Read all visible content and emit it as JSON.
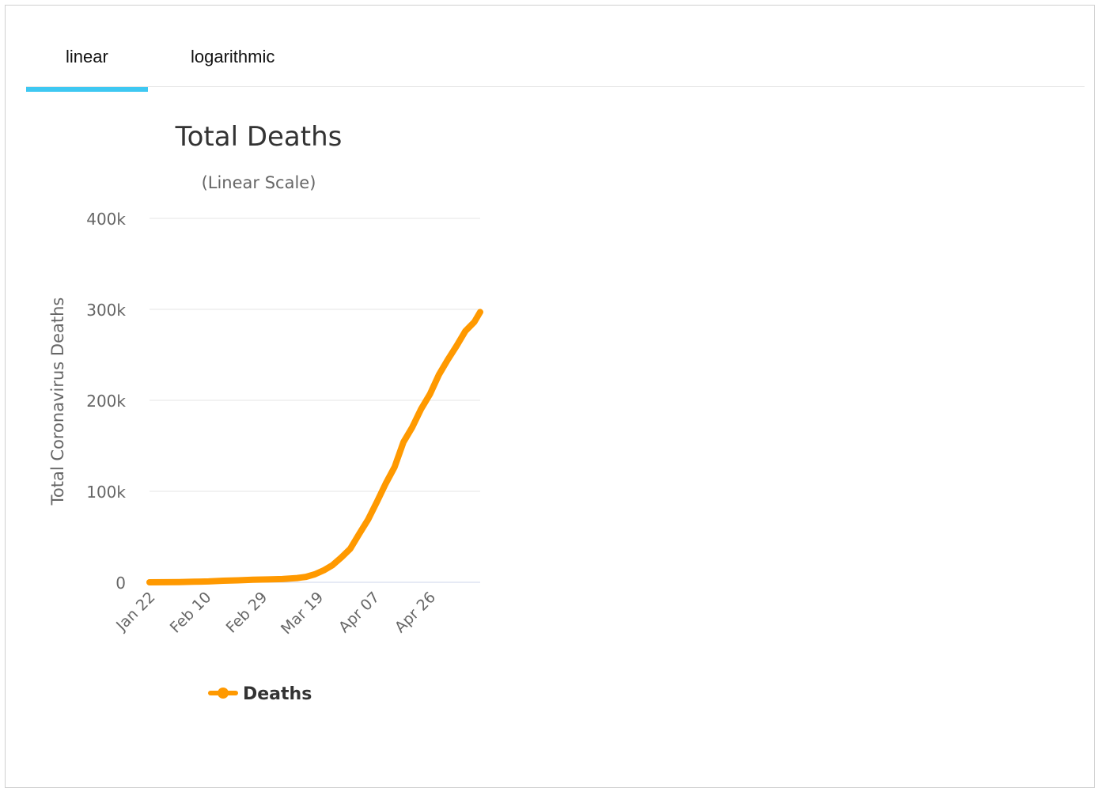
{
  "tabs": [
    {
      "label": "linear",
      "active": true
    },
    {
      "label": "logarithmic",
      "active": false
    }
  ],
  "colors": {
    "accent": "#3ec8f2",
    "series": "#ff9900",
    "grid": "#e6e6e6",
    "axis": "#ccd6eb"
  },
  "chart_data": {
    "type": "line",
    "title": "Total Deaths",
    "subtitle": "(Linear Scale)",
    "ylabel": "Total Coronavirus Deaths",
    "xlabel": "",
    "ylim": [
      0,
      400000
    ],
    "yticks": [
      0,
      100000,
      200000,
      300000,
      400000
    ],
    "ytick_labels": [
      "0",
      "100k",
      "200k",
      "300k",
      "400k"
    ],
    "x_start": "Jan 22",
    "xticks": [
      "Jan 22",
      "Feb 10",
      "Feb 29",
      "Mar 19",
      "Apr 07",
      "Apr 26"
    ],
    "grid": true,
    "legend_position": "bottom-center",
    "series": [
      {
        "name": "Deaths",
        "x": [
          "Jan 22",
          "Jan 27",
          "Feb 01",
          "Feb 06",
          "Feb 11",
          "Feb 16",
          "Feb 21",
          "Feb 26",
          "Mar 02",
          "Mar 07",
          "Mar 12",
          "Mar 15",
          "Mar 18",
          "Mar 21",
          "Mar 24",
          "Mar 27",
          "Mar 30",
          "Apr 02",
          "Apr 05",
          "Apr 08",
          "Apr 11",
          "Apr 14",
          "Apr 17",
          "Apr 20",
          "Apr 23",
          "Apr 26",
          "Apr 29",
          "May 02",
          "May 05",
          "May 08",
          "May 11",
          "May 13"
        ],
        "values": [
          17,
          100,
          300,
          600,
          1000,
          1700,
          2200,
          2800,
          3100,
          3600,
          4700,
          6000,
          8800,
          13100,
          18900,
          27400,
          36900,
          53100,
          68800,
          88300,
          108500,
          126700,
          154100,
          170500,
          190600,
          206900,
          228100,
          244400,
          259700,
          276200,
          286000,
          297000
        ]
      }
    ]
  }
}
